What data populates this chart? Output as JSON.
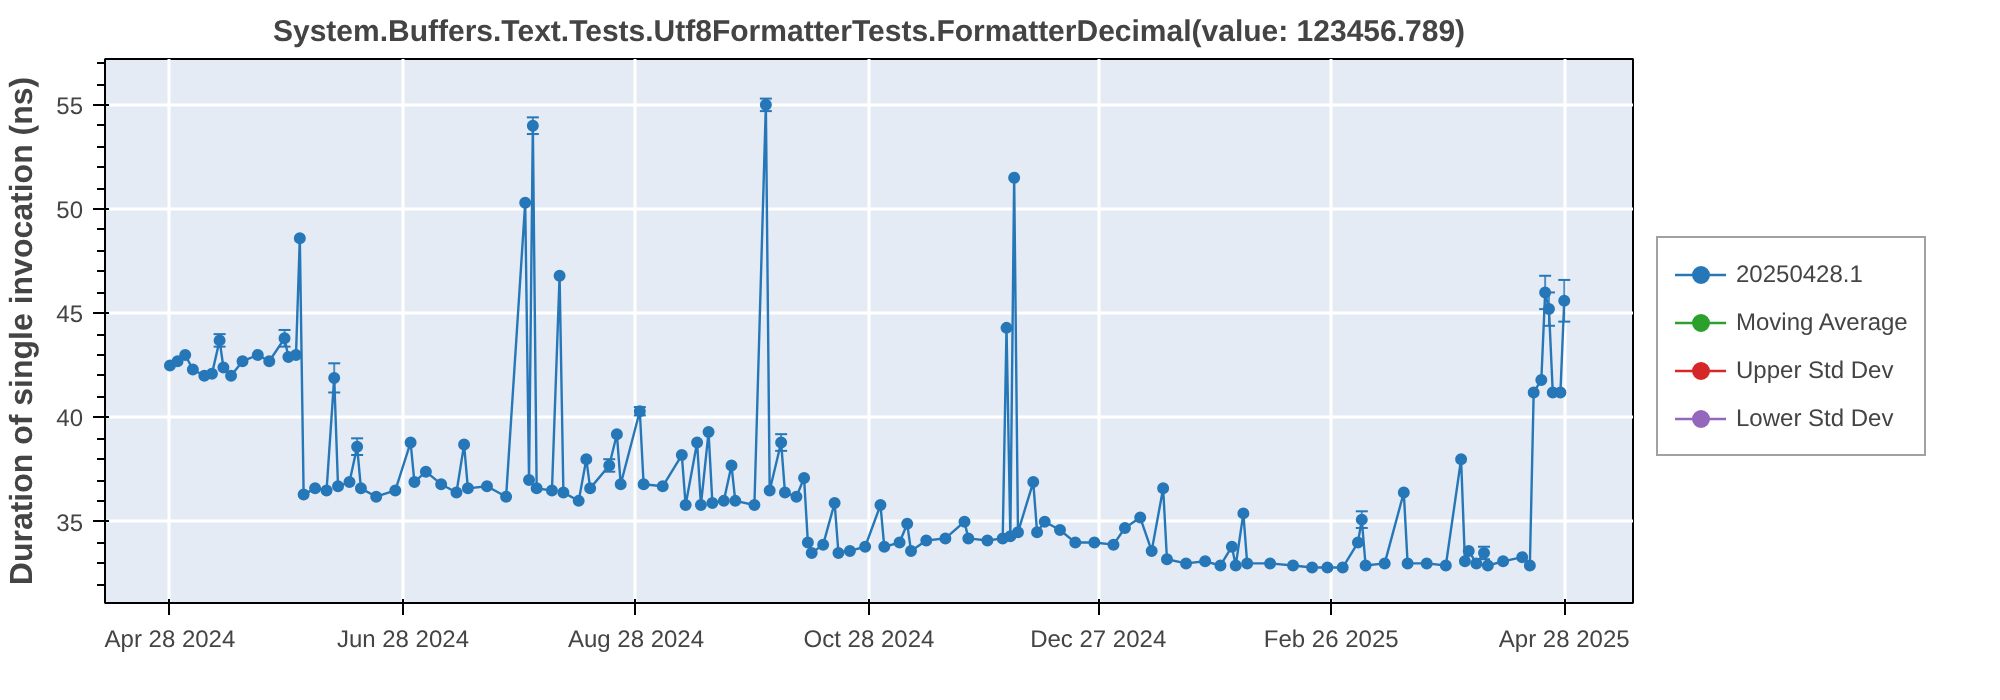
{
  "chart_data": {
    "type": "line",
    "title": "System.Buffers.Text.Tests.Utf8FormatterTests.FormatterDecimal(value: 123456.789)",
    "ylabel": "Duration of single invocation (ns)",
    "x": [
      "2024-04-28",
      "2024-04-30",
      "2024-05-02",
      "2024-05-04",
      "2024-05-07",
      "2024-05-09",
      "2024-05-11",
      "2024-05-12",
      "2024-05-14",
      "2024-05-17",
      "2024-05-21",
      "2024-05-24",
      "2024-05-28",
      "2024-05-29",
      "2024-05-31",
      "2024-06-01",
      "2024-06-02",
      "2024-06-05",
      "2024-06-08",
      "2024-06-10",
      "2024-06-11",
      "2024-06-14",
      "2024-06-16",
      "2024-06-17",
      "2024-06-21",
      "2024-06-26",
      "2024-06-30",
      "2024-07-01",
      "2024-07-04",
      "2024-07-08",
      "2024-07-12",
      "2024-07-14",
      "2024-07-15",
      "2024-07-20",
      "2024-07-25",
      "2024-07-30",
      "2024-07-31",
      "2024-08-01",
      "2024-08-02",
      "2024-08-06",
      "2024-08-08",
      "2024-08-09",
      "2024-08-13",
      "2024-08-15",
      "2024-08-16",
      "2024-08-21",
      "2024-08-23",
      "2024-08-24",
      "2024-08-29",
      "2024-08-30",
      "2024-09-04",
      "2024-09-09",
      "2024-09-10",
      "2024-09-13",
      "2024-09-14",
      "2024-09-16",
      "2024-09-17",
      "2024-09-20",
      "2024-09-22",
      "2024-09-23",
      "2024-09-28",
      "2024-10-01",
      "2024-10-02",
      "2024-10-05",
      "2024-10-06",
      "2024-10-09",
      "2024-10-11",
      "2024-10-12",
      "2024-10-13",
      "2024-10-16",
      "2024-10-19",
      "2024-10-20",
      "2024-10-23",
      "2024-10-27",
      "2024-10-31",
      "2024-11-01",
      "2024-11-05",
      "2024-11-07",
      "2024-11-08",
      "2024-11-12",
      "2024-11-17",
      "2024-11-22",
      "2024-11-23",
      "2024-11-28",
      "2024-12-02",
      "2024-12-03",
      "2024-12-04",
      "2024-12-05",
      "2024-12-06",
      "2024-12-10",
      "2024-12-11",
      "2024-12-13",
      "2024-12-17",
      "2024-12-21",
      "2024-12-26",
      "2024-12-31",
      "2025-01-03",
      "2025-01-07",
      "2025-01-10",
      "2025-01-13",
      "2025-01-14",
      "2025-01-19",
      "2025-01-24",
      "2025-01-28",
      "2025-01-31",
      "2025-02-01",
      "2025-02-03",
      "2025-02-04",
      "2025-02-10",
      "2025-02-16",
      "2025-02-21",
      "2025-02-25",
      "2025-03-01",
      "2025-03-05",
      "2025-03-06",
      "2025-03-07",
      "2025-03-12",
      "2025-03-17",
      "2025-03-18",
      "2025-03-23",
      "2025-03-28",
      "2025-04-01",
      "2025-04-02",
      "2025-04-03",
      "2025-04-05",
      "2025-04-07",
      "2025-04-08",
      "2025-04-12",
      "2025-04-17",
      "2025-04-19",
      "2025-04-20",
      "2025-04-22",
      "2025-04-23",
      "2025-04-24",
      "2025-04-25",
      "2025-04-27",
      "2025-04-28"
    ],
    "series": [
      {
        "name": "20250428.1",
        "color": "#2677b8",
        "values": [
          42.5,
          42.7,
          43.0,
          42.3,
          42.0,
          42.1,
          43.7,
          42.4,
          42.0,
          42.7,
          43.0,
          42.7,
          43.8,
          42.9,
          43.0,
          48.6,
          36.3,
          36.6,
          36.5,
          41.9,
          36.7,
          36.9,
          38.6,
          36.6,
          36.2,
          36.5,
          38.8,
          36.9,
          37.4,
          36.8,
          36.4,
          38.7,
          36.6,
          36.7,
          36.2,
          50.3,
          37.0,
          54.0,
          36.6,
          36.5,
          46.8,
          36.4,
          36.0,
          38.0,
          36.6,
          37.7,
          39.2,
          36.8,
          40.3,
          36.8,
          36.7,
          38.2,
          35.8,
          38.8,
          35.8,
          39.3,
          35.9,
          36.0,
          37.7,
          36.0,
          35.8,
          55.0,
          36.5,
          38.8,
          36.4,
          36.2,
          37.1,
          34.0,
          33.5,
          33.9,
          35.9,
          33.5,
          33.6,
          33.8,
          35.8,
          33.8,
          34.0,
          34.9,
          33.6,
          34.1,
          34.2,
          35.0,
          34.2,
          34.1,
          34.2,
          44.3,
          34.3,
          51.5,
          34.5,
          36.9,
          34.5,
          35.0,
          34.6,
          34.0,
          34.0,
          33.9,
          34.7,
          35.2,
          33.6,
          36.6,
          33.2,
          33.0,
          33.1,
          32.9,
          33.8,
          32.9,
          35.4,
          33.0,
          33.0,
          32.9,
          32.8,
          32.8,
          32.8,
          34.0,
          35.1,
          32.9,
          33.0,
          36.4,
          33.0,
          33.0,
          32.9,
          38.0,
          33.1,
          33.6,
          33.0,
          33.5,
          32.9,
          33.1,
          33.3,
          32.9,
          41.2,
          41.8,
          46.0,
          45.2,
          41.2,
          41.2,
          45.6
        ],
        "errors": [
          null,
          null,
          null,
          null,
          null,
          null,
          0.3,
          null,
          null,
          null,
          null,
          null,
          0.4,
          null,
          null,
          null,
          null,
          null,
          null,
          0.7,
          null,
          null,
          0.4,
          null,
          null,
          null,
          null,
          null,
          null,
          null,
          null,
          null,
          null,
          null,
          null,
          null,
          null,
          0.4,
          null,
          null,
          null,
          null,
          null,
          null,
          null,
          0.3,
          null,
          null,
          0.2,
          null,
          null,
          null,
          null,
          null,
          null,
          null,
          null,
          null,
          null,
          null,
          null,
          0.3,
          null,
          0.4,
          null,
          null,
          null,
          null,
          null,
          null,
          null,
          null,
          null,
          null,
          null,
          null,
          null,
          null,
          null,
          null,
          null,
          null,
          null,
          null,
          null,
          null,
          null,
          null,
          null,
          null,
          null,
          null,
          null,
          null,
          null,
          null,
          null,
          null,
          null,
          null,
          null,
          null,
          null,
          null,
          null,
          null,
          null,
          null,
          null,
          null,
          null,
          null,
          null,
          null,
          0.4,
          null,
          null,
          null,
          null,
          null,
          null,
          null,
          null,
          null,
          null,
          0.3,
          null,
          null,
          null,
          null,
          null,
          null,
          0.8,
          0.8,
          null,
          null,
          1.0
        ]
      },
      {
        "name": "Moving Average",
        "color": "#2ca02c",
        "values": [
          null,
          null,
          null,
          null,
          null,
          null,
          null,
          null,
          null,
          null,
          null,
          null,
          null,
          null,
          null,
          null,
          null,
          null,
          null,
          null,
          null,
          null,
          null,
          null,
          null,
          null,
          null,
          null,
          null,
          null,
          null,
          null,
          null,
          null,
          null,
          null,
          null,
          null,
          null,
          null,
          null,
          null,
          null,
          null,
          null,
          null,
          null,
          null,
          null,
          null,
          null,
          null,
          null,
          null,
          null,
          null,
          null,
          null,
          null,
          null,
          null,
          null,
          null,
          null,
          null,
          null,
          null,
          null,
          null,
          null,
          null,
          null,
          null,
          null,
          null,
          null,
          null,
          null,
          null,
          null,
          null,
          null,
          null,
          null,
          null,
          null,
          null,
          null,
          null,
          null,
          null,
          null,
          null,
          null,
          null,
          null,
          null,
          null,
          null,
          null,
          null,
          null,
          null,
          null,
          null,
          null,
          null,
          null,
          null,
          null,
          null,
          null,
          null,
          null,
          null,
          null,
          null,
          null,
          null,
          null,
          null,
          null,
          null,
          null,
          null,
          null,
          null,
          null,
          null,
          null,
          null,
          null,
          null,
          null,
          null,
          null,
          null
        ]
      },
      {
        "name": "Upper Std Dev",
        "color": "#d62728",
        "values": [
          null,
          null,
          null,
          null,
          null,
          null,
          null,
          null,
          null,
          null,
          null,
          null,
          null,
          null,
          null,
          null,
          null,
          null,
          null,
          null,
          null,
          null,
          null,
          null,
          null,
          null,
          null,
          null,
          null,
          null,
          null,
          null,
          null,
          null,
          null,
          null,
          null,
          null,
          null,
          null,
          null,
          null,
          null,
          null,
          null,
          null,
          null,
          null,
          null,
          null,
          null,
          null,
          null,
          null,
          null,
          null,
          null,
          null,
          null,
          null,
          null,
          null,
          null,
          null,
          null,
          null,
          null,
          null,
          null,
          null,
          null,
          null,
          null,
          null,
          null,
          null,
          null,
          null,
          null,
          null,
          null,
          null,
          null,
          null,
          null,
          null,
          null,
          null,
          null,
          null,
          null,
          null,
          null,
          null,
          null,
          null,
          null,
          null,
          null,
          null,
          null,
          null,
          null,
          null,
          null,
          null,
          null,
          null,
          null,
          null,
          null,
          null,
          null,
          null,
          null,
          null,
          null,
          null,
          null,
          null,
          null,
          null,
          null,
          null,
          null,
          null,
          null,
          null,
          null,
          null,
          null,
          null,
          null,
          null,
          null,
          null,
          null
        ]
      },
      {
        "name": "Lower Std Dev",
        "color": "#9467bd",
        "values": [
          null,
          null,
          null,
          null,
          null,
          null,
          null,
          null,
          null,
          null,
          null,
          null,
          null,
          null,
          null,
          null,
          null,
          null,
          null,
          null,
          null,
          null,
          null,
          null,
          null,
          null,
          null,
          null,
          null,
          null,
          null,
          null,
          null,
          null,
          null,
          null,
          null,
          null,
          null,
          null,
          null,
          null,
          null,
          null,
          null,
          null,
          null,
          null,
          null,
          null,
          null,
          null,
          null,
          null,
          null,
          null,
          null,
          null,
          null,
          null,
          null,
          null,
          null,
          null,
          null,
          null,
          null,
          null,
          null,
          null,
          null,
          null,
          null,
          null,
          null,
          null,
          null,
          null,
          null,
          null,
          null,
          null,
          null,
          null,
          null,
          null,
          null,
          null,
          null,
          null,
          null,
          null,
          null,
          null,
          null,
          null,
          null,
          null,
          null,
          null,
          null,
          null,
          null,
          null,
          null,
          null,
          null,
          null,
          null,
          null,
          null,
          null,
          null,
          null,
          null,
          null,
          null,
          null,
          null,
          null,
          null,
          null,
          null,
          null,
          null,
          null,
          null,
          null,
          null,
          null,
          null,
          null,
          null,
          null,
          null,
          null,
          null
        ]
      }
    ],
    "xlim": [
      "2024-04-11",
      "2025-05-16"
    ],
    "ylim": [
      31.1,
      57.2
    ],
    "xticks": [
      {
        "value": "2024-04-28",
        "label": "Apr 28 2024"
      },
      {
        "value": "2024-06-28",
        "label": "Jun 28 2024"
      },
      {
        "value": "2024-08-28",
        "label": "Aug 28 2024"
      },
      {
        "value": "2024-10-28",
        "label": "Oct 28 2024"
      },
      {
        "value": "2024-12-27",
        "label": "Dec 27 2024"
      },
      {
        "value": "2025-02-26",
        "label": "Feb 26 2025"
      },
      {
        "value": "2025-04-28",
        "label": "Apr 28 2025"
      }
    ],
    "yticks": [
      35,
      40,
      45,
      50,
      55
    ],
    "grid": true,
    "legend": "right",
    "marker": "circle",
    "line_style": "solid"
  }
}
